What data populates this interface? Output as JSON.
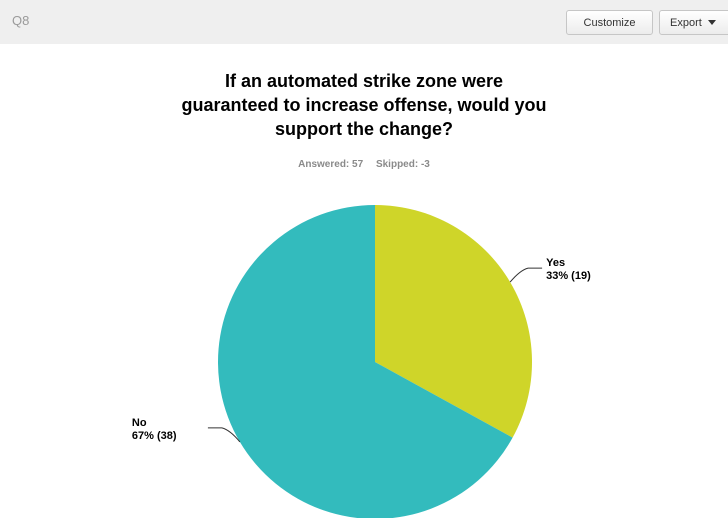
{
  "header": {
    "question_number": "Q8",
    "customize_label": "Customize",
    "export_label": "Export",
    "export_caret_icon": "caret-down-icon"
  },
  "stats": {
    "answered": "Answered: 57",
    "skipped": "Skipped: -3"
  },
  "colors": {
    "topbar": "#efefef",
    "yes": "#cfd529",
    "no": "#33bbbd"
  },
  "chart_data": {
    "type": "pie",
    "title_lines": [
      "If an automated strike zone were",
      "guaranteed to increase offense, would you",
      "support the change?"
    ],
    "slices": [
      {
        "name": "Yes",
        "percent_label": "33% (19)",
        "percent": 33,
        "count": 19,
        "color": "#cfd529"
      },
      {
        "name": "No",
        "percent_label": "67% (38)",
        "percent": 67,
        "count": 38,
        "color": "#33bbbd"
      }
    ]
  }
}
